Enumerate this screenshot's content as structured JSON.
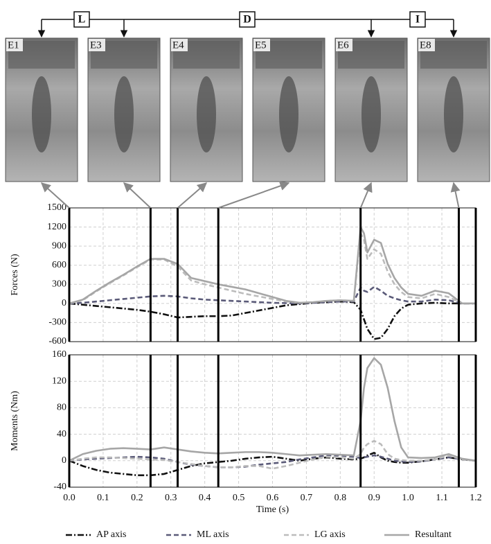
{
  "phases": [
    "L",
    "D",
    "I"
  ],
  "photos": [
    {
      "label": "E1"
    },
    {
      "label": "E3"
    },
    {
      "label": "E4"
    },
    {
      "label": "E5"
    },
    {
      "label": "E6"
    },
    {
      "label": "E8"
    }
  ],
  "event_times": [
    0,
    0.24,
    0.32,
    0.44,
    0.86,
    1.15
  ],
  "chart_data": [
    {
      "type": "line",
      "y_label": "Forces (N)",
      "x": [
        0,
        0.04,
        0.08,
        0.12,
        0.16,
        0.2,
        0.24,
        0.28,
        0.32,
        0.36,
        0.4,
        0.44,
        0.48,
        0.52,
        0.56,
        0.6,
        0.64,
        0.68,
        0.72,
        0.76,
        0.8,
        0.84,
        0.86,
        0.87,
        0.88,
        0.9,
        0.92,
        0.94,
        0.96,
        0.98,
        1,
        1.04,
        1.08,
        1.12,
        1.16,
        1.2
      ],
      "xlim": [
        0,
        1.2
      ],
      "xticks": [
        0,
        0.1,
        0.2,
        0.3,
        0.4,
        0.5,
        0.6,
        0.7,
        0.8,
        0.9,
        1,
        1.1,
        1.2
      ],
      "ylim": [
        -600,
        1500
      ],
      "yticks": [
        -600,
        -300,
        0,
        300,
        600,
        900,
        1200,
        1500
      ],
      "grid": true,
      "series": [
        {
          "name": "AP axis",
          "color": "#111111",
          "style": "dashdot",
          "values": [
            0,
            -20,
            -40,
            -60,
            -80,
            -100,
            -130,
            -170,
            -220,
            -210,
            -200,
            -200,
            -190,
            -150,
            -110,
            -70,
            -30,
            -10,
            10,
            20,
            30,
            20,
            -100,
            -250,
            -400,
            -560,
            -540,
            -400,
            -200,
            -80,
            -20,
            0,
            10,
            0,
            0,
            0
          ]
        },
        {
          "name": "ML axis",
          "color": "#5a5a78",
          "style": "dashed",
          "values": [
            0,
            10,
            30,
            50,
            70,
            90,
            110,
            120,
            110,
            80,
            60,
            50,
            40,
            30,
            20,
            10,
            5,
            0,
            10,
            20,
            30,
            30,
            250,
            200,
            180,
            260,
            200,
            120,
            80,
            50,
            30,
            30,
            60,
            50,
            0,
            0
          ]
        },
        {
          "name": "LG axis",
          "color": "#bcbcbc",
          "style": "dashed",
          "values": [
            0,
            50,
            190,
            320,
            440,
            570,
            690,
            690,
            580,
            360,
            300,
            250,
            200,
            150,
            110,
            70,
            30,
            10,
            20,
            40,
            50,
            40,
            1100,
            1000,
            700,
            850,
            780,
            500,
            300,
            180,
            100,
            80,
            150,
            100,
            0,
            0
          ]
        },
        {
          "name": "Resultant",
          "color": "#a6a6a6",
          "style": "solid",
          "values": [
            0,
            60,
            200,
            330,
            450,
            580,
            700,
            700,
            620,
            400,
            350,
            300,
            260,
            220,
            160,
            100,
            40,
            10,
            20,
            40,
            50,
            40,
            1200,
            1100,
            800,
            1000,
            950,
            620,
            400,
            250,
            150,
            120,
            200,
            160,
            0,
            0
          ]
        }
      ]
    },
    {
      "type": "line",
      "y_label": "Moments (Nm)",
      "x_label": "Time (s)",
      "x": [
        0,
        0.04,
        0.08,
        0.12,
        0.16,
        0.2,
        0.24,
        0.28,
        0.32,
        0.36,
        0.4,
        0.44,
        0.48,
        0.52,
        0.56,
        0.6,
        0.64,
        0.68,
        0.72,
        0.76,
        0.8,
        0.84,
        0.86,
        0.87,
        0.88,
        0.9,
        0.92,
        0.94,
        0.96,
        0.98,
        1,
        1.04,
        1.08,
        1.12,
        1.16,
        1.2
      ],
      "xlim": [
        0,
        1.2
      ],
      "xticks": [
        {
          "value": 0,
          "label": "0.0"
        },
        0.1,
        0.2,
        0.3,
        0.4,
        0.5,
        0.6,
        0.7,
        0.8,
        0.9,
        {
          "value": 1,
          "label": "1.0"
        },
        1.1,
        1.2
      ],
      "ylim": [
        -40,
        160
      ],
      "yticks": [
        -40,
        0,
        40,
        80,
        120,
        160
      ],
      "grid": true,
      "series": [
        {
          "color": "#111111",
          "style": "dashdot",
          "values": [
            0,
            -8,
            -14,
            -18,
            -20,
            -22,
            -22,
            -20,
            -14,
            -8,
            -4,
            -2,
            0,
            3,
            5,
            6,
            3,
            0,
            3,
            5,
            3,
            2,
            3,
            5,
            8,
            12,
            5,
            0,
            -2,
            -3,
            -3,
            -1,
            2,
            5,
            2,
            0
          ]
        },
        {
          "color": "#5a5a78",
          "style": "dashed",
          "values": [
            0,
            2,
            3,
            4,
            5,
            6,
            5,
            3,
            -2,
            -6,
            -8,
            -10,
            -10,
            -9,
            -6,
            -4,
            -2,
            2,
            5,
            8,
            8,
            6,
            4,
            5,
            6,
            8,
            6,
            3,
            0,
            -1,
            -2,
            -1,
            2,
            5,
            2,
            0
          ]
        },
        {
          "color": "#bcbcbc",
          "style": "dashed",
          "values": [
            0,
            3,
            5,
            5,
            4,
            3,
            2,
            1,
            -2,
            -5,
            -8,
            -10,
            -10,
            -8,
            -8,
            -12,
            -8,
            -3,
            2,
            6,
            5,
            3,
            10,
            20,
            25,
            30,
            25,
            10,
            3,
            1,
            0,
            0,
            2,
            8,
            2,
            0
          ]
        },
        {
          "color": "#a6a6a6",
          "style": "solid",
          "values": [
            0,
            10,
            15,
            18,
            19,
            18,
            17,
            20,
            17,
            14,
            12,
            11,
            12,
            13,
            13,
            12,
            10,
            8,
            9,
            10,
            9,
            8,
            60,
            110,
            140,
            155,
            145,
            110,
            60,
            20,
            5,
            4,
            5,
            10,
            3,
            0
          ]
        }
      ]
    }
  ]
}
